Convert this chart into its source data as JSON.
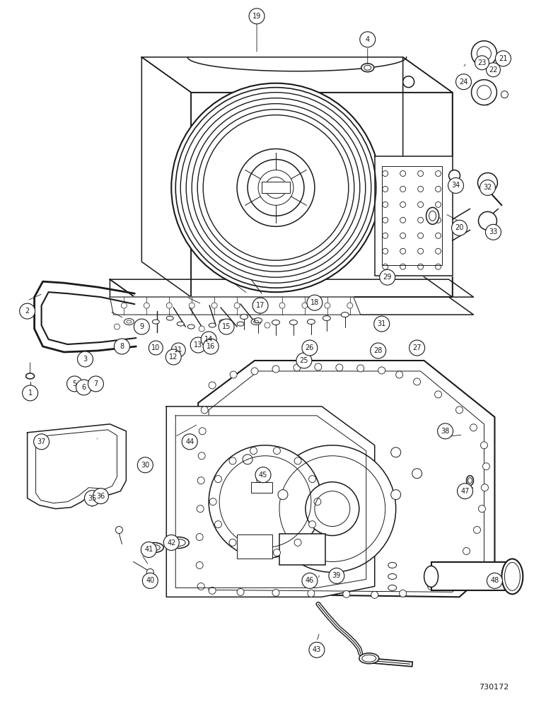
{
  "background_color": "#ffffff",
  "line_color": "#1a1a1a",
  "figure_number": "730172",
  "fig_w": 7.72,
  "fig_h": 10.0,
  "dpi": 100
}
